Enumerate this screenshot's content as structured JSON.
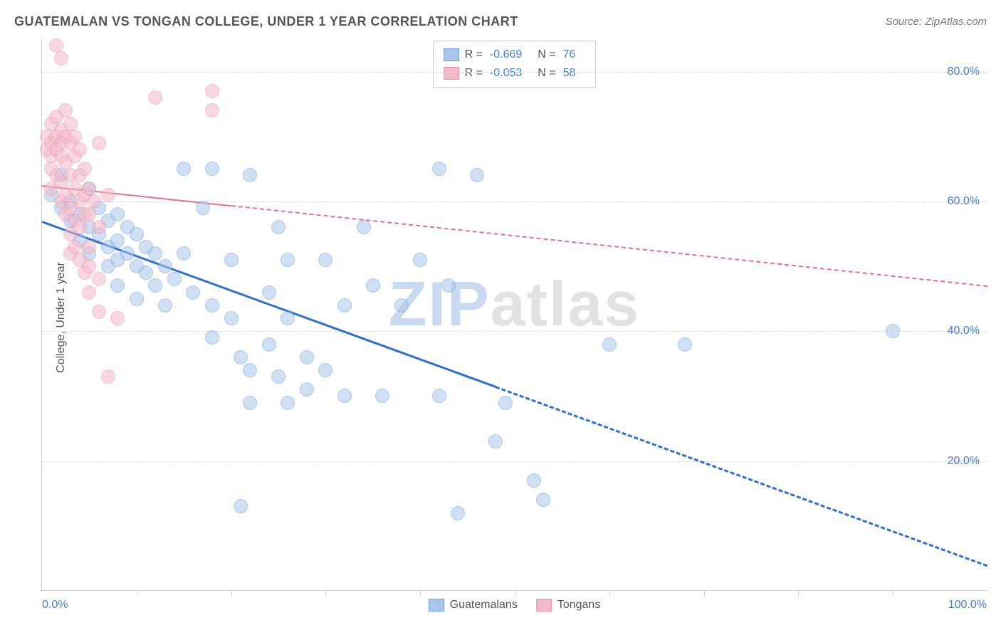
{
  "title": "GUATEMALAN VS TONGAN COLLEGE, UNDER 1 YEAR CORRELATION CHART",
  "source": "Source: ZipAtlas.com",
  "ylabel": "College, Under 1 year",
  "chart": {
    "type": "scatter",
    "background_color": "#ffffff",
    "grid_color": "#dddddd",
    "axis_color": "#d0d0d0",
    "xlim": [
      0,
      100
    ],
    "ylim": [
      0,
      85
    ],
    "ytick_labels": [
      "20.0%",
      "40.0%",
      "60.0%",
      "80.0%"
    ],
    "ytick_values": [
      20,
      40,
      60,
      80
    ],
    "xtick_positions": [
      10,
      20,
      30,
      40,
      50,
      60,
      70,
      80,
      90
    ],
    "xtick_left_label": "0.0%",
    "xtick_right_label": "100.0%",
    "tick_label_color": "#4a7ec9",
    "label_color": "#555555",
    "title_fontsize": 18,
    "label_fontsize": 16,
    "tick_fontsize": 16,
    "marker_radius": 10,
    "marker_opacity": 0.55,
    "series": [
      {
        "name": "Guatemalans",
        "color_fill": "#a9c6ec",
        "color_border": "#6f9fd8",
        "r": "-0.669",
        "n": "76",
        "trend": {
          "x1": 0,
          "y1": 57,
          "x2": 100,
          "y2": 4,
          "solid_until_x": 48,
          "color": "#2f6fd0",
          "width": 3
        },
        "points": [
          [
            1,
            61
          ],
          [
            2,
            59
          ],
          [
            2,
            64
          ],
          [
            3,
            60
          ],
          [
            3,
            57
          ],
          [
            4,
            58
          ],
          [
            4,
            54
          ],
          [
            5,
            62
          ],
          [
            5,
            56
          ],
          [
            5,
            52
          ],
          [
            6,
            59
          ],
          [
            6,
            55
          ],
          [
            7,
            57
          ],
          [
            7,
            53
          ],
          [
            7,
            50
          ],
          [
            8,
            58
          ],
          [
            8,
            54
          ],
          [
            8,
            51
          ],
          [
            8,
            47
          ],
          [
            9,
            56
          ],
          [
            9,
            52
          ],
          [
            10,
            55
          ],
          [
            10,
            50
          ],
          [
            10,
            45
          ],
          [
            11,
            53
          ],
          [
            11,
            49
          ],
          [
            12,
            52
          ],
          [
            12,
            47
          ],
          [
            13,
            50
          ],
          [
            13,
            44
          ],
          [
            14,
            48
          ],
          [
            15,
            65
          ],
          [
            15,
            52
          ],
          [
            16,
            46
          ],
          [
            17,
            59
          ],
          [
            18,
            65
          ],
          [
            18,
            44
          ],
          [
            18,
            39
          ],
          [
            20,
            51
          ],
          [
            20,
            42
          ],
          [
            21,
            36
          ],
          [
            21,
            13
          ],
          [
            22,
            64
          ],
          [
            22,
            34
          ],
          [
            22,
            29
          ],
          [
            24,
            46
          ],
          [
            24,
            38
          ],
          [
            25,
            56
          ],
          [
            25,
            33
          ],
          [
            26,
            51
          ],
          [
            26,
            42
          ],
          [
            26,
            29
          ],
          [
            28,
            36
          ],
          [
            28,
            31
          ],
          [
            30,
            51
          ],
          [
            30,
            34
          ],
          [
            32,
            44
          ],
          [
            32,
            30
          ],
          [
            34,
            56
          ],
          [
            35,
            47
          ],
          [
            36,
            30
          ],
          [
            38,
            44
          ],
          [
            40,
            51
          ],
          [
            42,
            65
          ],
          [
            42,
            30
          ],
          [
            43,
            47
          ],
          [
            44,
            12
          ],
          [
            46,
            64
          ],
          [
            48,
            23
          ],
          [
            49,
            29
          ],
          [
            52,
            17
          ],
          [
            53,
            14
          ],
          [
            60,
            38
          ],
          [
            68,
            38
          ],
          [
            90,
            40
          ]
        ]
      },
      {
        "name": "Tongans",
        "color_fill": "#f3b9c8",
        "color_border": "#e994ad",
        "r": "-0.053",
        "n": "58",
        "trend": {
          "x1": 0,
          "y1": 62.5,
          "x2": 100,
          "y2": 47,
          "solid_until_x": 20,
          "color": "#e66f93",
          "width": 2
        },
        "points": [
          [
            0.5,
            70
          ],
          [
            0.5,
            68
          ],
          [
            1,
            72
          ],
          [
            1,
            69
          ],
          [
            1,
            67
          ],
          [
            1,
            65
          ],
          [
            1,
            62
          ],
          [
            1.5,
            84
          ],
          [
            1.5,
            73
          ],
          [
            1.5,
            70
          ],
          [
            1.5,
            68
          ],
          [
            1.5,
            64
          ],
          [
            2,
            82
          ],
          [
            2,
            71
          ],
          [
            2,
            69
          ],
          [
            2,
            67
          ],
          [
            2,
            63
          ],
          [
            2,
            60
          ],
          [
            2.5,
            74
          ],
          [
            2.5,
            70
          ],
          [
            2.5,
            66
          ],
          [
            2.5,
            61
          ],
          [
            2.5,
            58
          ],
          [
            3,
            72
          ],
          [
            3,
            69
          ],
          [
            3,
            64
          ],
          [
            3,
            59
          ],
          [
            3,
            55
          ],
          [
            3,
            52
          ],
          [
            3.5,
            70
          ],
          [
            3.5,
            67
          ],
          [
            3.5,
            62
          ],
          [
            3.5,
            57
          ],
          [
            3.5,
            53
          ],
          [
            4,
            68
          ],
          [
            4,
            64
          ],
          [
            4,
            60
          ],
          [
            4,
            56
          ],
          [
            4,
            51
          ],
          [
            4.5,
            65
          ],
          [
            4.5,
            61
          ],
          [
            4.5,
            58
          ],
          [
            4.5,
            49
          ],
          [
            5,
            62
          ],
          [
            5,
            58
          ],
          [
            5,
            53
          ],
          [
            5,
            50
          ],
          [
            5,
            46
          ],
          [
            5.5,
            60
          ],
          [
            6,
            56
          ],
          [
            6,
            69
          ],
          [
            6,
            48
          ],
          [
            6,
            43
          ],
          [
            7,
            61
          ],
          [
            7,
            33
          ],
          [
            8,
            42
          ],
          [
            12,
            76
          ],
          [
            18,
            77
          ],
          [
            18,
            74
          ]
        ]
      }
    ]
  },
  "legend_top": {
    "r_label": "R =",
    "n_label": "N ="
  },
  "legend_bottom": {
    "items": [
      "Guatemalans",
      "Tongans"
    ]
  },
  "watermark": {
    "part1": "ZIP",
    "part2": "atlas"
  }
}
